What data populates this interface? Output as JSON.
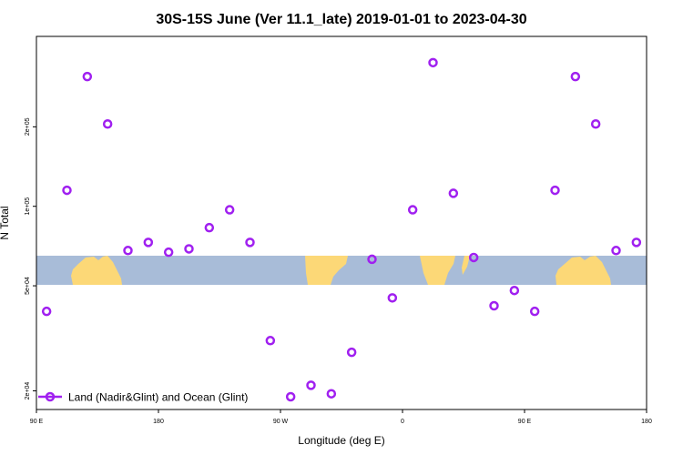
{
  "chart_data": {
    "type": "scatter",
    "title": "30S-15S June (Ver 11.1_late)   2019-01-01 to 2023-04-30",
    "xlabel": "Longitude (deg E)",
    "ylabel": "N Total",
    "y_scale": "log",
    "xlim": [
      90,
      540
    ],
    "ylim": [
      17000,
      440000
    ],
    "x_ticks": [
      {
        "value": 90,
        "label": "90 E"
      },
      {
        "value": 180,
        "label": "180"
      },
      {
        "value": 270,
        "label": "90 W"
      },
      {
        "value": 360,
        "label": "0"
      },
      {
        "value": 450,
        "label": "90 E"
      },
      {
        "value": 540,
        "label": "180"
      }
    ],
    "y_ticks": [
      {
        "value": 20000,
        "label": "2e+04"
      },
      {
        "value": 50000,
        "label": "5e+04"
      },
      {
        "value": 100000,
        "label": "1e+05"
      },
      {
        "value": 200000,
        "label": "2e+05"
      }
    ],
    "grid": false,
    "legend_position": "bottom-left",
    "background": "map strip of land and ocean for 30S-15S",
    "series": [
      {
        "name": "Land (Nadir&Glint) and Ocean (Glint)",
        "color": "#a020f0",
        "marker": "open-circle",
        "x": [
          97.5,
          112.5,
          127.5,
          142.5,
          157.5,
          172.5,
          187.5,
          202.5,
          217.5,
          232.5,
          247.5,
          262.5,
          277.5,
          292.5,
          307.5,
          322.5,
          337.5,
          352.5,
          367.5,
          382.5,
          397.5,
          412.5,
          427.5,
          442.5,
          457.5,
          472.5,
          487.5,
          502.5,
          517.5,
          532.5
        ],
        "y": [
          40000,
          115000,
          310000,
          205000,
          68000,
          73000,
          67000,
          69000,
          83000,
          97000,
          73000,
          31000,
          19000,
          21000,
          19500,
          28000,
          63000,
          45000,
          97000,
          350000,
          112000,
          64000,
          42000,
          48000,
          40000,
          115000,
          310000,
          205000,
          68000,
          73000
        ]
      }
    ]
  }
}
